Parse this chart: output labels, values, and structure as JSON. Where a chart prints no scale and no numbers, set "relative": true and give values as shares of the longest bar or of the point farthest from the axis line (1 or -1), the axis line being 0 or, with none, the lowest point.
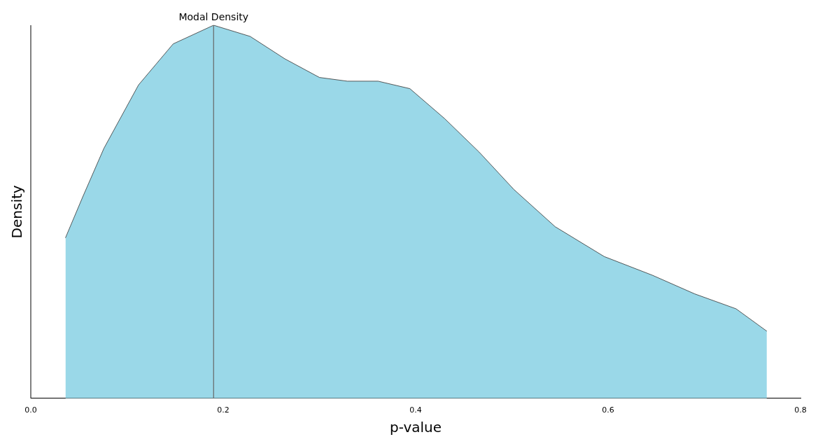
{
  "chart_data": {
    "type": "area",
    "xlabel": "p-value",
    "ylabel": "Density",
    "relative": true,
    "x": [
      0.036,
      0.054,
      0.076,
      0.112,
      0.148,
      0.19,
      0.228,
      0.264,
      0.3,
      0.329,
      0.361,
      0.394,
      0.43,
      0.466,
      0.502,
      0.545,
      0.596,
      0.646,
      0.69,
      0.733,
      0.765
    ],
    "series": [
      {
        "color": "#9ad8e8",
        "values": [
          0.43,
          0.54,
          0.67,
          0.84,
          0.95,
          1.0,
          0.97,
          0.91,
          0.86,
          0.85,
          0.85,
          0.83,
          0.75,
          0.66,
          0.56,
          0.46,
          0.38,
          0.33,
          0.28,
          0.24,
          0.18
        ]
      }
    ],
    "xlim": [
      0,
      0.8
    ],
    "xticks": [
      {
        "value": 0,
        "label": "0.0"
      },
      {
        "value": 0.2,
        "label": "0.2"
      },
      {
        "value": 0.4,
        "label": "0.4"
      },
      {
        "value": 0.6,
        "label": "0.6"
      },
      {
        "value": 0.8,
        "label": "0.8"
      }
    ],
    "ref_lines": [
      {
        "axis": "x",
        "value": 0.19,
        "label": "Modal Density",
        "color": "#666666"
      }
    ],
    "grid": false,
    "legend": false
  }
}
